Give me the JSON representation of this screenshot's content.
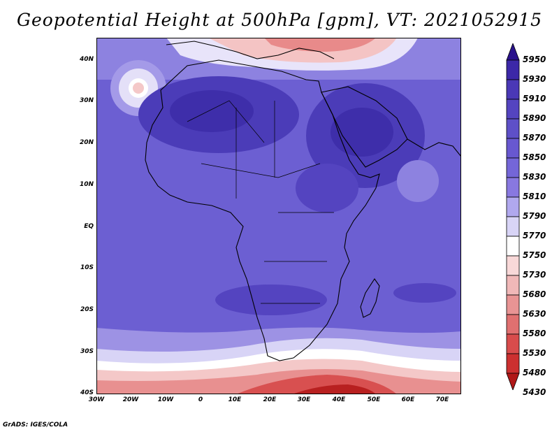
{
  "title": "Geopotential Height at 500hPa [gpm], VT: 2021052915",
  "credit": "GrADS: IGES/COLA",
  "map": {
    "lon_range": [
      -30,
      77
    ],
    "lat_range": [
      -40,
      45
    ],
    "lat_ticks": [
      "40N",
      "30N",
      "20N",
      "10N",
      "EQ",
      "10S",
      "20S",
      "30S",
      "40S"
    ],
    "lon_ticks": [
      "30W",
      "20W",
      "10W",
      "0",
      "10E",
      "20E",
      "30E",
      "40E",
      "50E",
      "60E",
      "70E"
    ]
  },
  "colorbar": {
    "levels": [
      "5950",
      "5930",
      "5910",
      "5890",
      "5870",
      "5850",
      "5830",
      "5810",
      "5790",
      "5770",
      "5750",
      "5730",
      "5680",
      "5630",
      "5580",
      "5530",
      "5480",
      "5430"
    ],
    "colors": [
      "#2a128c",
      "#3c28a8",
      "#4a38b6",
      "#5444c0",
      "#5e50c8",
      "#6858d0",
      "#7466d8",
      "#8878e0",
      "#b0a8ee",
      "#d8d4f6",
      "#ffffff",
      "#f8d8d8",
      "#f0b8b8",
      "#e89494",
      "#e07070",
      "#d84c4c",
      "#cc3030",
      "#b01818"
    ]
  }
}
